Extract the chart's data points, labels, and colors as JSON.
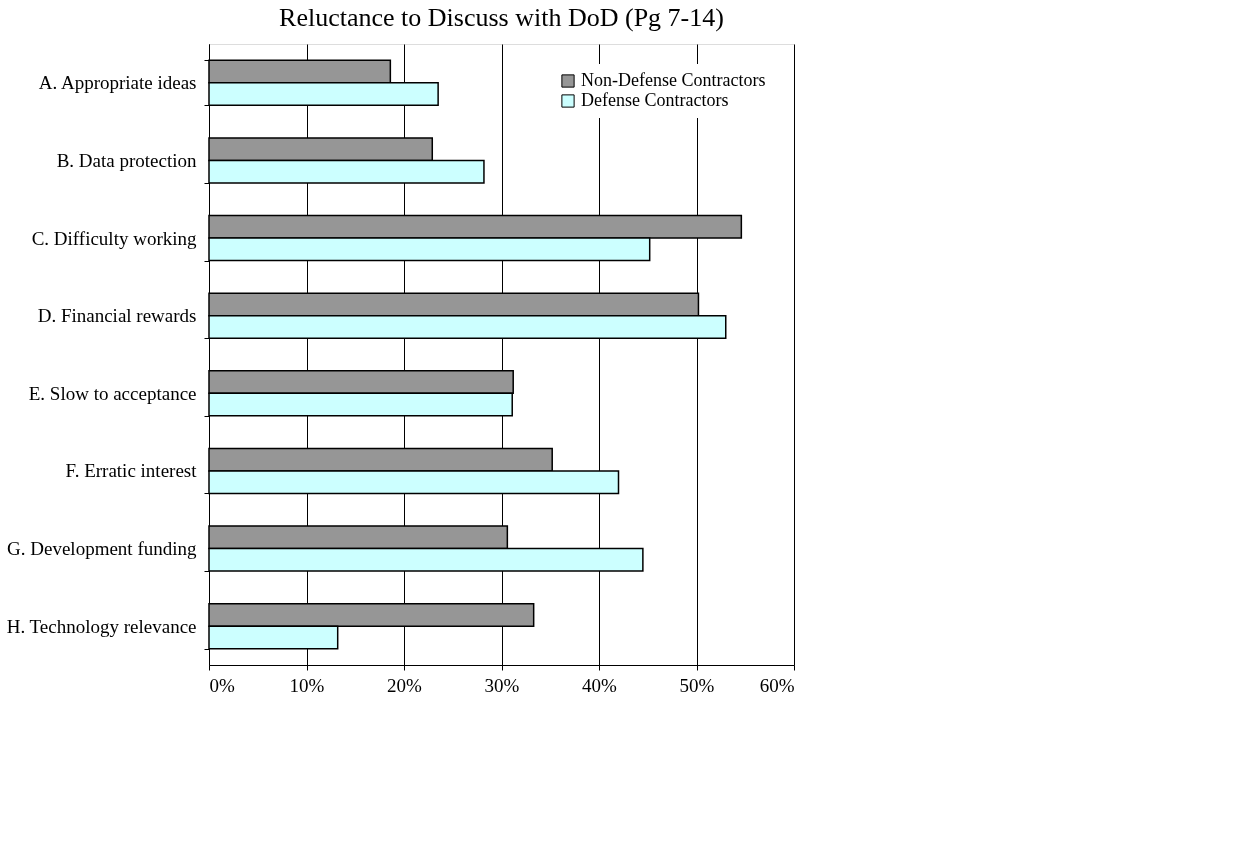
{
  "chart_data": {
    "type": "bar",
    "orientation": "horizontal",
    "title": "Reluctance to Discuss with DoD (Pg 7-14)",
    "categories": [
      "A. Appropriate ideas",
      "B. Data protection",
      "C. Difficulty working",
      "D. Financial rewards",
      "E. Slow to acceptance",
      "F. Erratic interest",
      "G. Development funding",
      "H. Technology relevance"
    ],
    "series": [
      {
        "name": "Non-Defense Contractors",
        "color": "#969696",
        "values": [
          18.6,
          22.9,
          54.6,
          50.2,
          31.2,
          35.2,
          30.6,
          33.3
        ]
      },
      {
        "name": "Defense Contractors",
        "color": "#ccffff",
        "values": [
          23.5,
          28.2,
          45.2,
          53.0,
          31.1,
          42.0,
          44.5,
          13.2
        ]
      }
    ],
    "xlim": [
      0,
      60
    ],
    "xticks": [
      {
        "value": 0,
        "label": "0%"
      },
      {
        "value": 10,
        "label": "10%"
      },
      {
        "value": 20,
        "label": "20%"
      },
      {
        "value": 30,
        "label": "30%"
      },
      {
        "value": 40,
        "label": "40%"
      },
      {
        "value": 50,
        "label": "50%"
      },
      {
        "value": 60,
        "label": "60%"
      }
    ],
    "grid": "x",
    "legend": "top right"
  }
}
